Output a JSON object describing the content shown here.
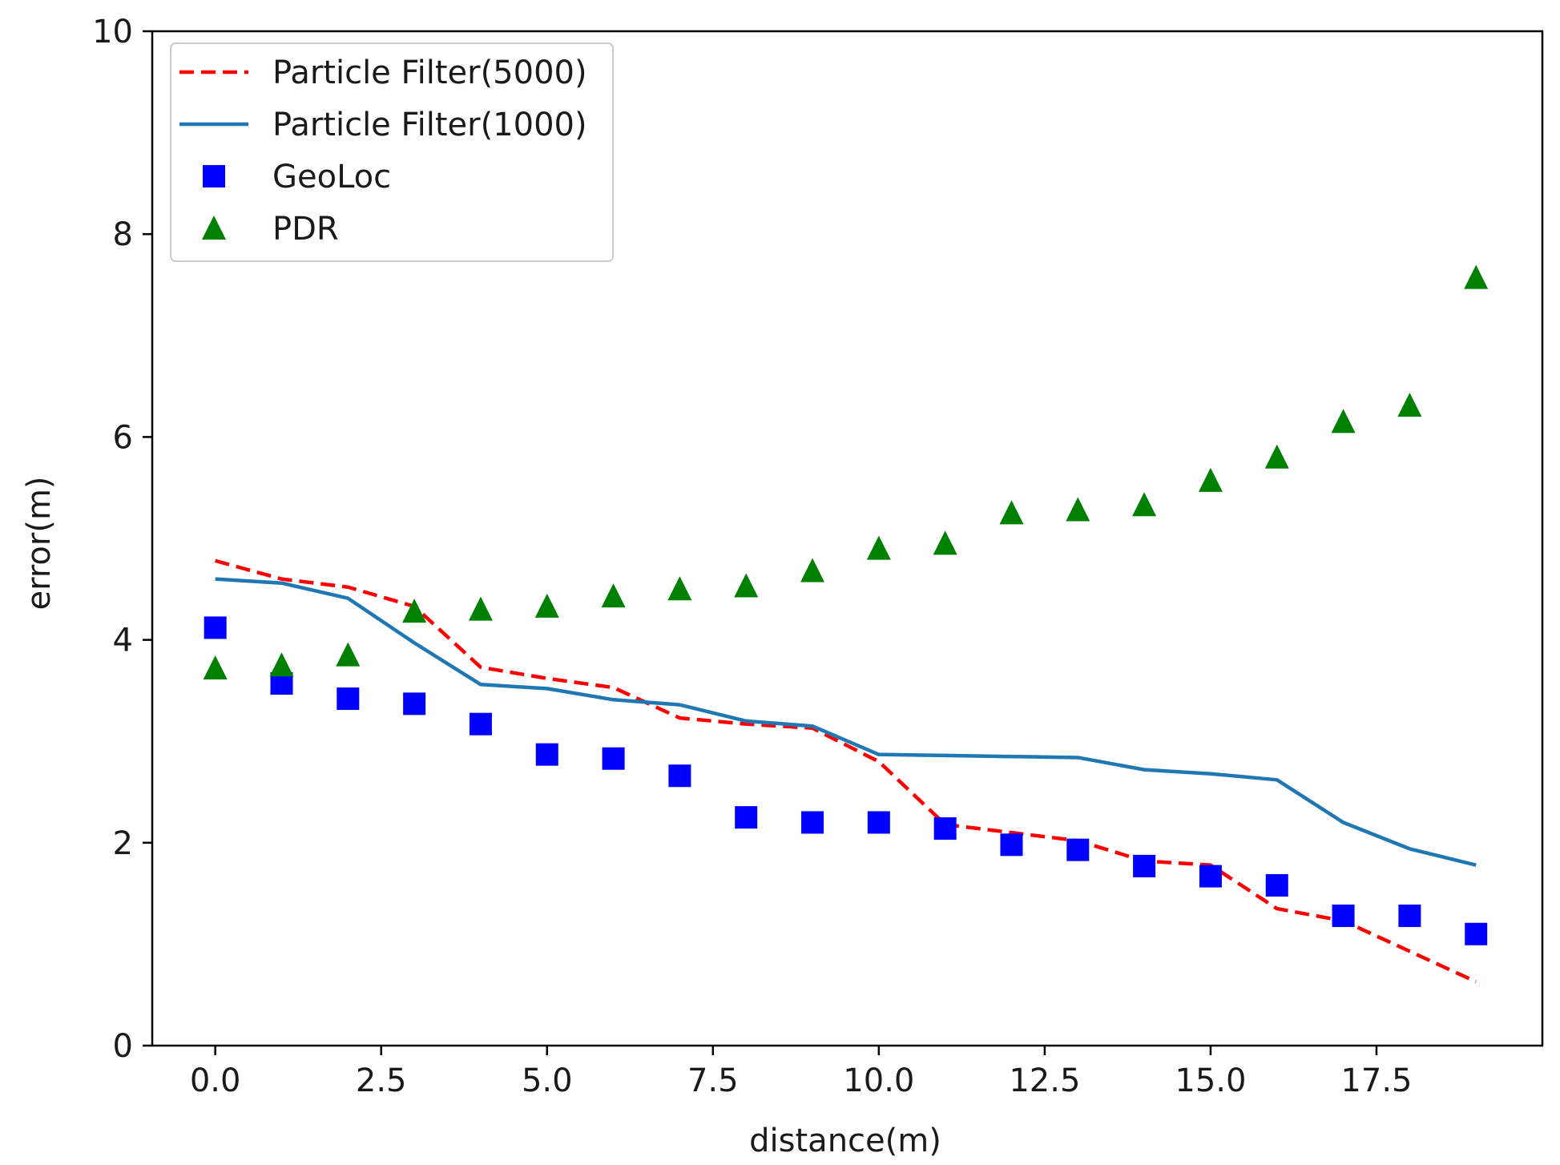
{
  "chart_data": {
    "type": "line",
    "title": "",
    "xlabel": "distance(m)",
    "ylabel": "error(m)",
    "xlim": [
      -0.95,
      20.0
    ],
    "ylim": [
      0,
      10
    ],
    "x_ticks": [
      0.0,
      2.5,
      5.0,
      7.5,
      10.0,
      12.5,
      15.0,
      17.5
    ],
    "x_tick_labels": [
      "0.0",
      "2.5",
      "5.0",
      "7.5",
      "10.0",
      "12.5",
      "15.0",
      "17.5"
    ],
    "y_ticks": [
      0,
      2,
      4,
      6,
      8,
      10
    ],
    "y_tick_labels": [
      "0",
      "2",
      "4",
      "6",
      "8",
      "10"
    ],
    "grid": false,
    "legend_position": "top-left",
    "x": [
      0,
      1,
      2,
      3,
      4,
      5,
      6,
      7,
      8,
      9,
      10,
      11,
      12,
      13,
      14,
      15,
      16,
      17,
      18,
      19
    ],
    "series": [
      {
        "name": "Particle Filter(5000)",
        "kind": "line",
        "style": "dashed",
        "color": "#ff0000",
        "values": [
          4.78,
          4.6,
          4.52,
          4.33,
          3.73,
          3.62,
          3.53,
          3.23,
          3.17,
          3.13,
          2.8,
          2.18,
          2.1,
          2.02,
          1.82,
          1.78,
          1.35,
          1.23,
          0.93,
          0.63
        ]
      },
      {
        "name": "Particle Filter(1000)",
        "kind": "line",
        "style": "solid",
        "color": "#1f77b4",
        "values": [
          4.6,
          4.56,
          4.41,
          3.97,
          3.56,
          3.52,
          3.41,
          3.36,
          3.2,
          3.15,
          2.87,
          2.86,
          2.85,
          2.84,
          2.72,
          2.68,
          2.62,
          2.2,
          1.94,
          1.78
        ]
      },
      {
        "name": "GeoLoc",
        "kind": "scatter",
        "marker": "square",
        "color": "#0000ff",
        "values": [
          4.12,
          3.57,
          3.42,
          3.37,
          3.17,
          2.87,
          2.83,
          2.66,
          2.25,
          2.2,
          2.2,
          2.14,
          1.98,
          1.93,
          1.77,
          1.67,
          1.58,
          1.28,
          1.28,
          1.1
        ]
      },
      {
        "name": "PDR",
        "kind": "scatter",
        "marker": "triangle",
        "color": "#008000",
        "values": [
          3.72,
          3.75,
          3.85,
          4.28,
          4.3,
          4.33,
          4.43,
          4.5,
          4.53,
          4.68,
          4.9,
          4.95,
          5.25,
          5.28,
          5.33,
          5.57,
          5.8,
          6.15,
          6.31,
          7.57
        ]
      }
    ]
  }
}
